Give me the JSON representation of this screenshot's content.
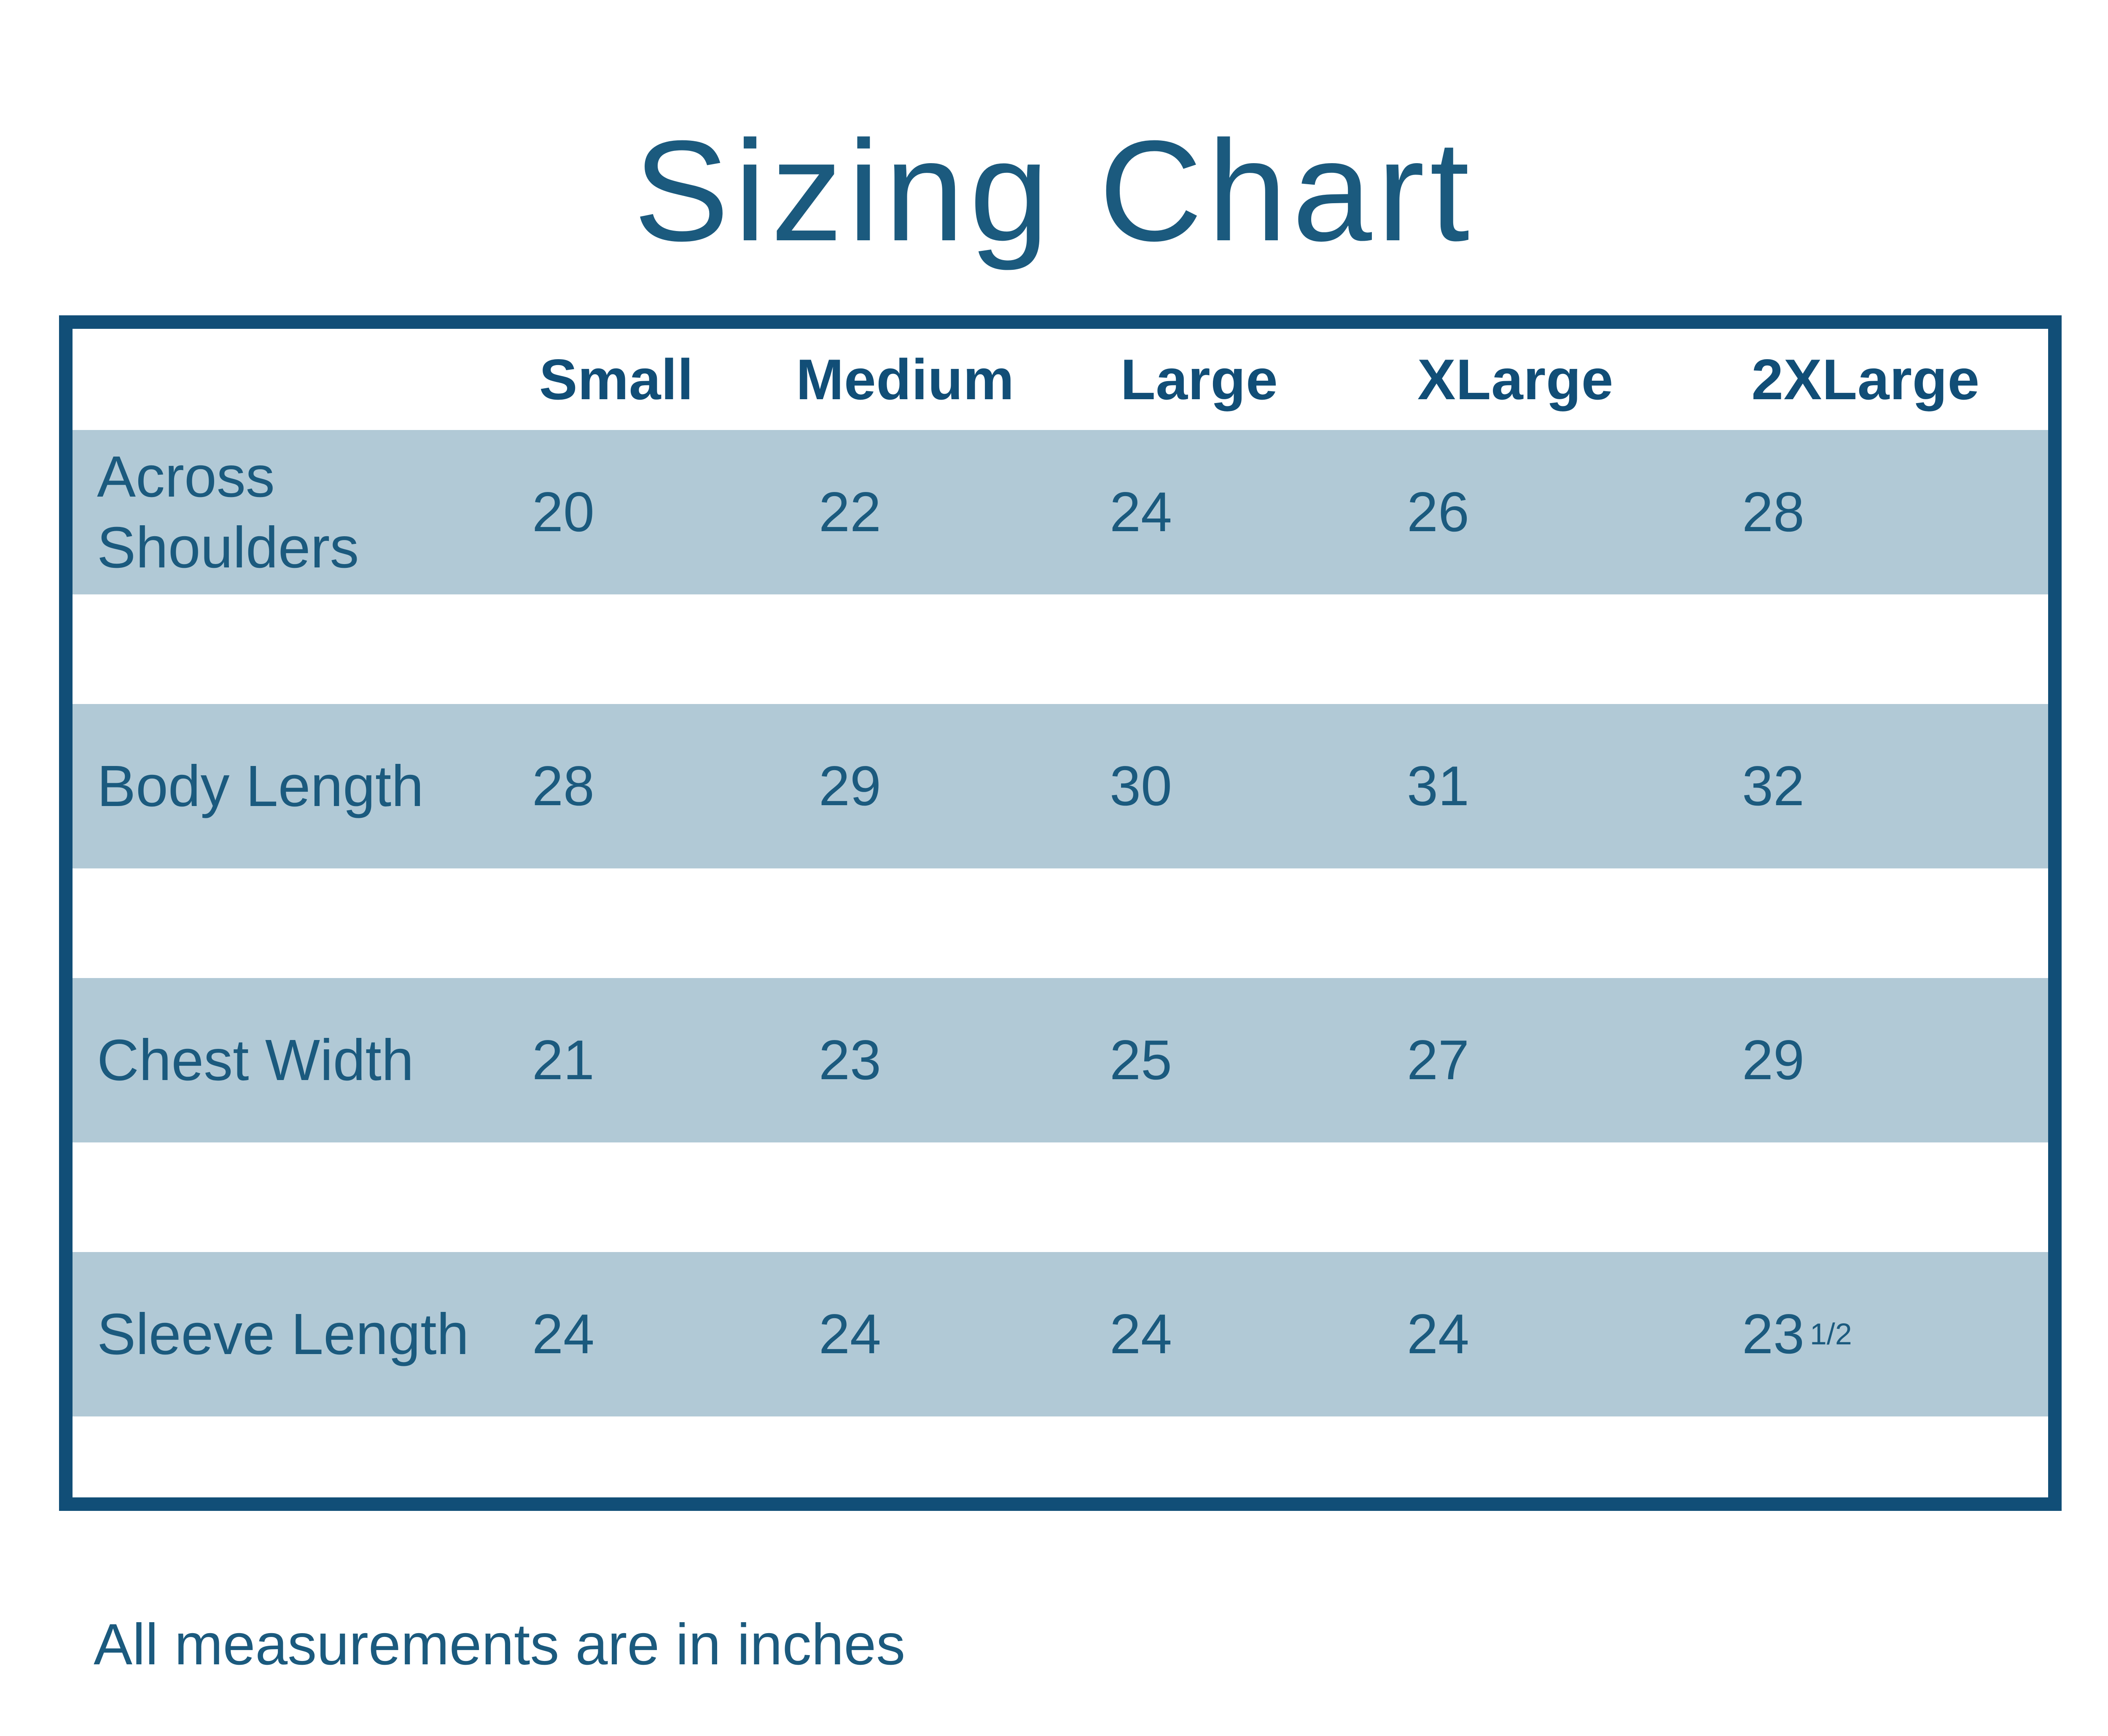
{
  "title": "Sizing Chart",
  "note": "All measurements are in inches",
  "colors": {
    "accent": "#114e77",
    "text": "#1b5a7e",
    "row_band": "#b1c9d6",
    "background": "#ffffff"
  },
  "chart_data": {
    "type": "table",
    "title": "Sizing Chart",
    "columns": [
      "Small",
      "Medium",
      "Large",
      "XLarge",
      "2XLarge"
    ],
    "rows": [
      {
        "label": "Across Shoulders",
        "values": [
          "20",
          "22",
          "24",
          "26",
          "28"
        ]
      },
      {
        "label": "Body Length",
        "values": [
          "28",
          "29",
          "30",
          "31",
          "32"
        ]
      },
      {
        "label": "Chest Width",
        "values": [
          "21",
          "23",
          "25",
          "27",
          "29"
        ]
      },
      {
        "label": "Sleeve Length",
        "values": [
          "24",
          "24",
          "24",
          "24",
          "23 1/2"
        ]
      }
    ],
    "note": "All measurements are in inches",
    "units": "inches",
    "layout": {
      "grid": false,
      "band_style": "alternating horizontal bands"
    }
  }
}
